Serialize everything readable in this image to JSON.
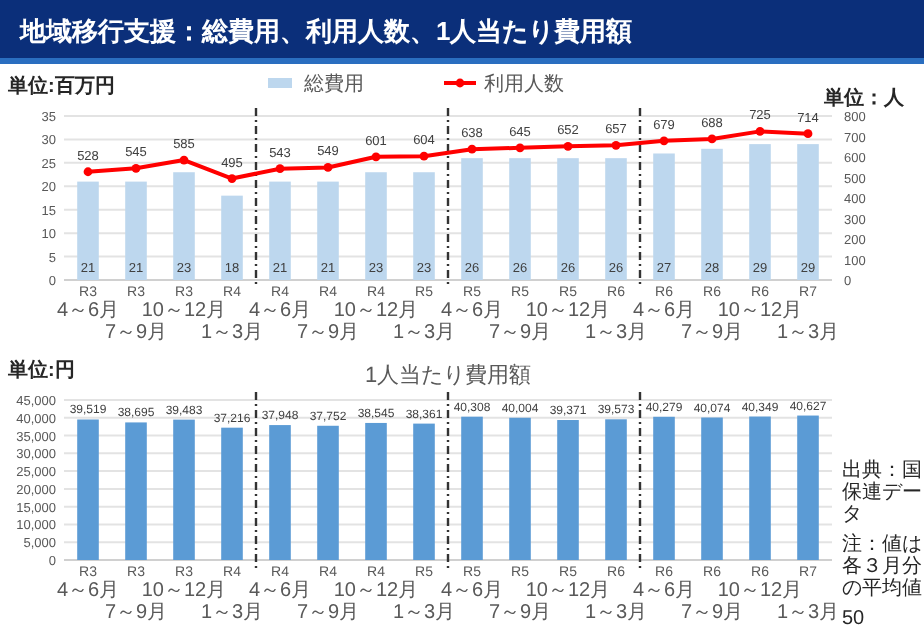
{
  "chart_data": [
    {
      "type": "bar",
      "title": "地域移行支援：総費用、利用人数、1人当たり費用額",
      "ylabel": "単位:百万円",
      "y2label": "単位：人",
      "categories": [
        "R3\n4～6月",
        "R3\n7～9月",
        "R3\n10～12月",
        "R4\n1～3月",
        "R4\n4～6月",
        "R4\n7～9月",
        "R4\n10～12月",
        "R5\n1～3月",
        "R5\n4～6月",
        "R5\n7～9月",
        "R5\n10～12月",
        "R6\n1～3月",
        "R6\n4～6月",
        "R6\n7～9月",
        "R6\n10～12月",
        "R7\n1～3月"
      ],
      "series": [
        {
          "name": "総費用",
          "color": "#bdd7ee",
          "values": [
            21,
            21,
            23,
            18,
            21,
            21,
            23,
            23,
            26,
            26,
            26,
            26,
            27,
            28,
            29,
            29
          ]
        },
        {
          "name": "利用人数",
          "type": "line",
          "axis": "y2",
          "color": "#ff0000",
          "values": [
            528,
            545,
            585,
            495,
            543,
            549,
            601,
            604,
            638,
            645,
            652,
            657,
            679,
            688,
            725,
            714
          ]
        }
      ],
      "ylim": [
        0,
        35
      ],
      "yticks": [
        0,
        5,
        10,
        15,
        20,
        25,
        30,
        35
      ],
      "y2lim": [
        0,
        800
      ],
      "y2ticks": [
        0,
        100,
        200,
        300,
        400,
        500,
        600,
        700,
        800
      ],
      "grid": "y",
      "legend": "top",
      "marker": "circle",
      "data_labels": true
    },
    {
      "type": "bar",
      "title": "1人当たり費用額",
      "ylabel": "単位:円",
      "categories": [
        "R3\n4～6月",
        "R3\n7～9月",
        "R3\n10～12月",
        "R4\n1～3月",
        "R4\n4～6月",
        "R4\n7～9月",
        "R4\n10～12月",
        "R5\n1～3月",
        "R5\n4～6月",
        "R5\n7～9月",
        "R5\n10～12月",
        "R6\n1～3月",
        "R6\n4～6月",
        "R6\n7～9月",
        "R6\n10～12月",
        "R7\n1～3月"
      ],
      "values": [
        39519,
        38695,
        39483,
        37216,
        37948,
        37752,
        38545,
        38361,
        40308,
        40004,
        39371,
        39573,
        40279,
        40074,
        40349,
        40627
      ],
      "value_labels": [
        "39,519",
        "38,695",
        "39,483",
        "37,216",
        "37,948",
        "37,752",
        "38,545",
        "38,361",
        "40,308",
        "40,004",
        "39,371",
        "39,573",
        "40,279",
        "40,074",
        "40,349",
        "40,627"
      ],
      "color": "#5b9bd5",
      "ylim": [
        0,
        45000
      ],
      "yticks": [
        {
          "value": 0,
          "label": "0"
        },
        {
          "value": 5000,
          "label": "5,000"
        },
        {
          "value": 10000,
          "label": "10,000"
        },
        {
          "value": 15000,
          "label": "15,000"
        },
        {
          "value": 20000,
          "label": "20,000"
        },
        {
          "value": 25000,
          "label": "25,000"
        },
        {
          "value": 30000,
          "label": "30,000"
        },
        {
          "value": 35000,
          "label": "35,000"
        },
        {
          "value": 40000,
          "label": "40,000"
        },
        {
          "value": 45000,
          "label": "45,000"
        }
      ],
      "grid": "y",
      "annotations": [
        "出典：国保連データ",
        "注：値は各３月分の平均値",
        "50"
      ]
    }
  ]
}
